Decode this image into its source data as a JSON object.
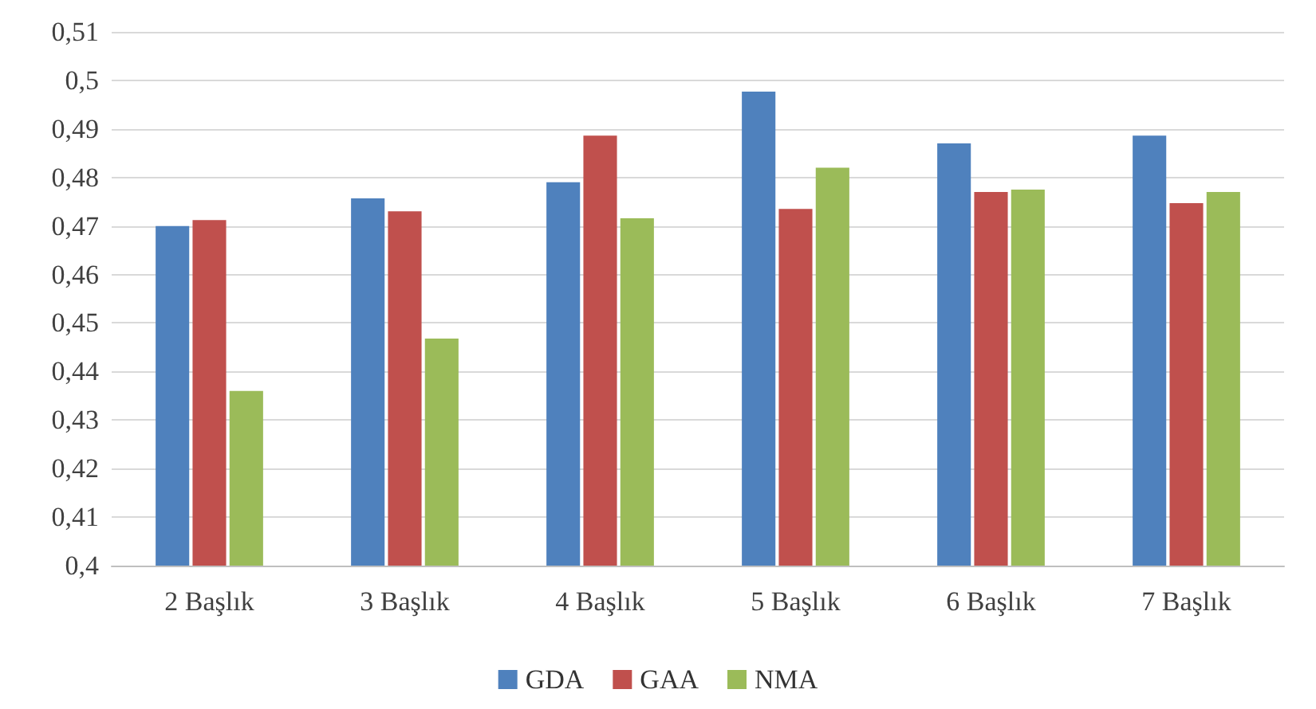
{
  "chart_data": {
    "type": "bar",
    "categories": [
      "2 Başlık",
      "3 Başlık",
      "4 Başlık",
      "5 Başlık",
      "6 Başlık",
      "7 Başlık"
    ],
    "series": [
      {
        "name": "GDA",
        "color": "#4f81bd",
        "values": [
          0.47,
          0.4757,
          0.479,
          0.4977,
          0.487,
          0.4886
        ]
      },
      {
        "name": "GAA",
        "color": "#c0504d",
        "values": [
          0.4712,
          0.473,
          0.4886,
          0.4735,
          0.477,
          0.4747
        ]
      },
      {
        "name": "NMA",
        "color": "#9bbb59",
        "values": [
          0.436,
          0.4468,
          0.4716,
          0.482,
          0.4775,
          0.477
        ]
      }
    ],
    "ylim": [
      0.4,
      0.51
    ],
    "yticks": [
      {
        "value": 0.4,
        "label": "0,4"
      },
      {
        "value": 0.41,
        "label": "0,41"
      },
      {
        "value": 0.42,
        "label": "0,42"
      },
      {
        "value": 0.43,
        "label": "0,43"
      },
      {
        "value": 0.44,
        "label": "0,44"
      },
      {
        "value": 0.45,
        "label": "0,45"
      },
      {
        "value": 0.46,
        "label": "0,46"
      },
      {
        "value": 0.47,
        "label": "0,47"
      },
      {
        "value": 0.48,
        "label": "0,48"
      },
      {
        "value": 0.49,
        "label": "0,49"
      },
      {
        "value": 0.5,
        "label": "0,5"
      },
      {
        "value": 0.51,
        "label": "0,51"
      }
    ],
    "grid": true,
    "legend": "bottom"
  }
}
